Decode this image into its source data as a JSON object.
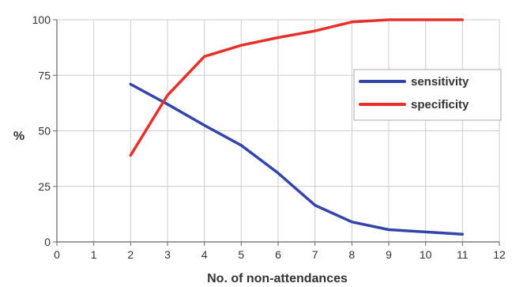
{
  "chart_data": {
    "type": "line",
    "xlabel": "No. of non-attendances",
    "ylabel": "%",
    "xlim": [
      0,
      12
    ],
    "ylim": [
      0,
      100
    ],
    "x_ticks": [
      0,
      1,
      2,
      3,
      4,
      5,
      6,
      7,
      8,
      9,
      10,
      11,
      12
    ],
    "y_ticks": [
      0,
      25,
      50,
      75,
      100
    ],
    "grid": true,
    "legend_position": "top-right",
    "series": [
      {
        "name": "sensitivity",
        "color": "#3344aa",
        "x": [
          2,
          3,
          4,
          5,
          6,
          7,
          8,
          9,
          10,
          11
        ],
        "values": [
          71,
          62,
          52.5,
          43.5,
          31,
          16.5,
          9,
          5.5,
          4.5,
          3.5
        ]
      },
      {
        "name": "specificity",
        "color": "#e8302a",
        "x": [
          2,
          3,
          4,
          5,
          6,
          7,
          8,
          9,
          10,
          11
        ],
        "values": [
          39,
          66,
          83.5,
          88.5,
          92,
          95,
          99,
          100,
          100,
          100
        ]
      }
    ]
  }
}
